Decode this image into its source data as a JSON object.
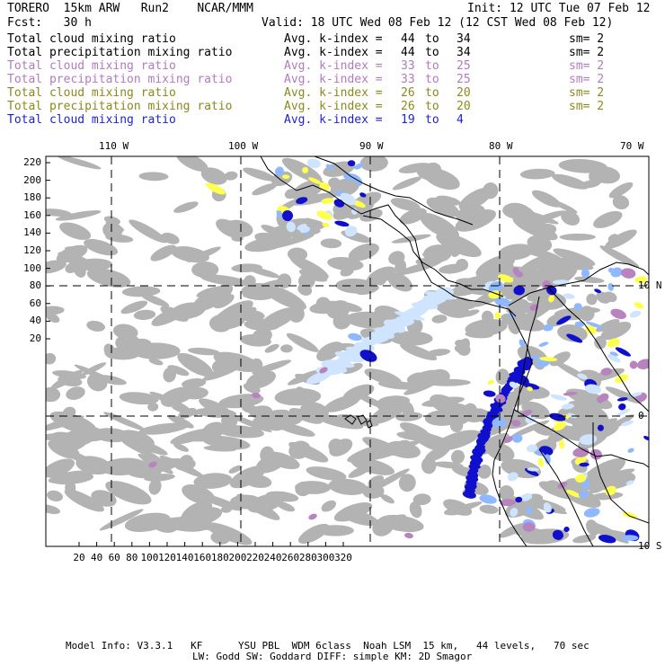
{
  "header": {
    "model": "TORERO  15km ARW   Run2    NCAR/MMM",
    "init": "Init: 12 UTC Tue 07 Feb 12",
    "fcst": "Fcst:   30 h",
    "valid": "Valid: 18 UTC Wed 08 Feb 12 (12 CST Wed 08 Feb 12)"
  },
  "colors": {
    "black": "#000000",
    "violet": "#b27bbf",
    "olive": "#8a8a1e",
    "blue": "#1f1fd6",
    "grey_cloud": "#b3b3b3",
    "light_blue": "#cfe4ff",
    "mid_blue": "#8fb8ff",
    "dark_blue": "#1010cc",
    "yellow": "#ffff4d",
    "purple": "#b784bf"
  },
  "legend": [
    {
      "field": "Total cloud mixing ratio",
      "k": "Avg. k-index = ",
      "a": "44",
      "to": "to",
      "b": "34",
      "sm": "sm= 2",
      "color": "black"
    },
    {
      "field": "Total precipitation mixing ratio",
      "k": "Avg. k-index = ",
      "a": "44",
      "to": "to",
      "b": "34",
      "sm": "sm= 2",
      "color": "black"
    },
    {
      "field": "Total cloud mixing ratio",
      "k": "Avg. k-index = ",
      "a": "33",
      "to": "to",
      "b": "25",
      "sm": "sm= 2",
      "color": "violet"
    },
    {
      "field": "Total precipitation mixing ratio",
      "k": "Avg. k-index = ",
      "a": "33",
      "to": "to",
      "b": "25",
      "sm": "sm= 2",
      "color": "violet"
    },
    {
      "field": "Total cloud mixing ratio",
      "k": "Avg. k-index = ",
      "a": "26",
      "to": "to",
      "b": "20",
      "sm": "sm= 2",
      "color": "olive"
    },
    {
      "field": "Total precipitation mixing ratio",
      "k": "Avg. k-index = ",
      "a": "26",
      "to": "to",
      "b": "20",
      "sm": "sm= 2",
      "color": "olive"
    },
    {
      "field": "Total cloud mixing ratio",
      "k": "Avg. k-index = ",
      "a": "19",
      "to": "to",
      "b": "4",
      "sm": "",
      "color": "blue"
    }
  ],
  "map": {
    "lon_labels": [
      "110 W",
      "100 W",
      "90 W",
      "80 W",
      "70 W"
    ],
    "lat_labels": [
      "10 N",
      "0",
      "10 S"
    ],
    "y_ticks": [
      "220",
      "200",
      "180",
      "160",
      "140",
      "120",
      "100",
      "80",
      "60",
      "40",
      "20"
    ],
    "x_ticks": [
      "20",
      "40",
      "60",
      "80",
      "100",
      "120",
      "140",
      "160",
      "180",
      "200",
      "220",
      "240",
      "260",
      "280",
      "300",
      "320"
    ]
  },
  "footer": {
    "line1": "Model Info: V3.3.1   KF      YSU PBL  WDM 6class  Noah LSM  15 km,   44 levels,   70 sec",
    "line2": "LW: Godd SW: Goddard DIFF: simple KM: 2D Smagor"
  }
}
